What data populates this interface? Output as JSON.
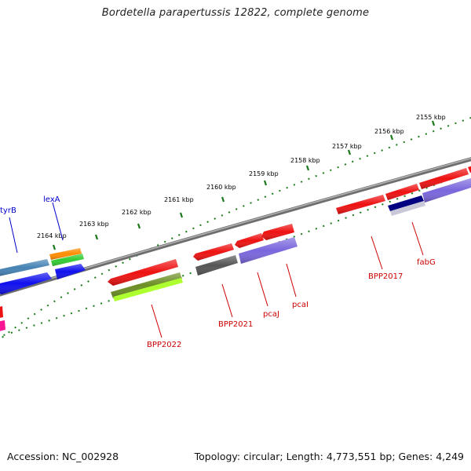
{
  "title": "Bordetella parapertussis 12822, complete genome",
  "footer": {
    "accession": "Accession: NC_002928",
    "topology": "Topology: circular; Length: 4,773,551 bp; Genes: 4,249"
  },
  "scale": {
    "ticks": [
      "2155 kbp",
      "2156 kbp",
      "2157 kbp",
      "2158 kbp",
      "2159 kbp",
      "2160 kbp",
      "2161 kbp",
      "2162 kbp",
      "2163 kbp",
      "2164 kbp"
    ]
  },
  "genes": {
    "forward_labels": [
      "tyrB",
      "lexA"
    ],
    "reverse_labels": [
      "BPP2022",
      "BPP2021",
      "pcaJ",
      "pcaI",
      "BPP2017",
      "fabG"
    ]
  },
  "colors": {
    "backbone": "#8c8c8c",
    "tick": "#1a7a1a",
    "forward_label": "#0000cc",
    "reverse_label": "#cc0000",
    "red_gene": "#ee1111",
    "purple_gene": "#7a66dd",
    "blue_gene": "#1010ee",
    "steelblue_gene": "#4682b4",
    "orange_gene": "#ff8c00",
    "green_gene": "#33cc33",
    "olive_gene": "#6b8e23",
    "lime_gene": "#adff2f",
    "darkgray_gene": "#555555",
    "navy_gene": "#000080",
    "magenta_gene": "#ff1493"
  }
}
